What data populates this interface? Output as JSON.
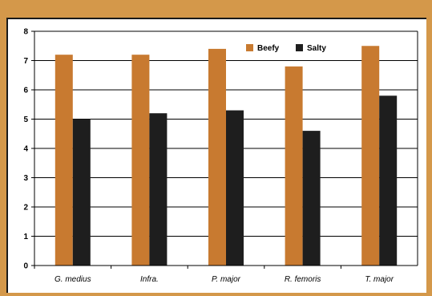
{
  "chart_data": {
    "type": "bar",
    "title": "",
    "xlabel": "",
    "ylabel": "",
    "categories": [
      "G. medius",
      "Infra.",
      "P. major",
      "R. femoris",
      "T. major"
    ],
    "series": [
      {
        "name": "Beefy",
        "values": [
          7.2,
          7.2,
          7.4,
          6.8,
          7.5
        ],
        "color": "#c87a30"
      },
      {
        "name": "Salty",
        "values": [
          5.0,
          5.2,
          5.3,
          4.6,
          5.8
        ],
        "color": "#1e1e1e"
      }
    ],
    "ylim": [
      0,
      8
    ],
    "yticks": [
      0,
      1,
      2,
      3,
      4,
      5,
      6,
      7,
      8
    ],
    "grid": true,
    "legend_position": "top-right"
  },
  "colors": {
    "background": "#d4984a",
    "panel": "#ffffff"
  }
}
